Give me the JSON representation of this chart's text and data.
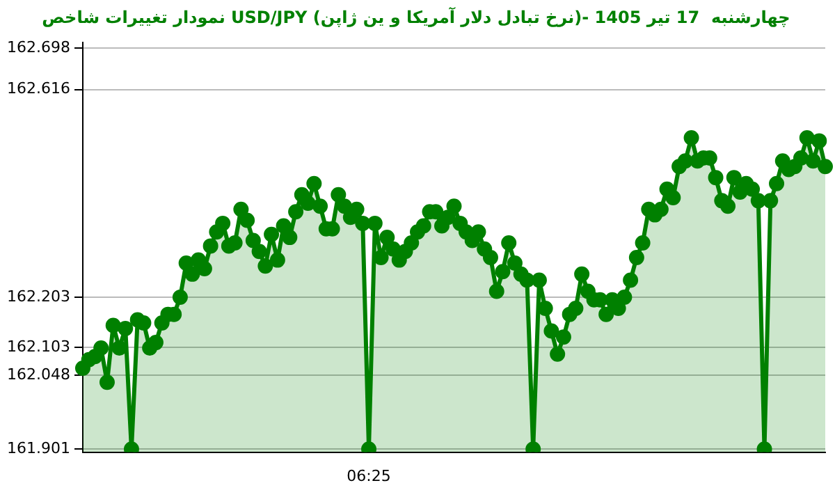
{
  "chart_data": {
    "type": "area",
    "title": "نمودار تغییرات شاخص USD/JPY (نرخ تبادل دلار آمریکا و ین ژاپن)- چهارشنبه  17 تیر 1405",
    "categories": [
      null,
      null,
      null,
      null,
      null,
      null,
      null,
      null,
      null,
      null,
      null,
      null,
      null,
      null,
      null,
      null,
      null,
      null,
      null,
      null,
      null,
      null,
      null,
      null,
      null,
      null,
      null,
      null,
      null,
      null,
      null,
      null,
      null,
      null,
      null,
      null,
      null,
      null,
      null,
      null,
      null,
      null,
      null,
      null,
      null,
      null,
      null,
      "06:25",
      null,
      null,
      null,
      null,
      null,
      null,
      null,
      null,
      null,
      null,
      null,
      null,
      null,
      null,
      null,
      null,
      null,
      null,
      null,
      null,
      null,
      null,
      null,
      null,
      null,
      null,
      null,
      null,
      null,
      null,
      null,
      null,
      null,
      null,
      null,
      null,
      null,
      null,
      null,
      null,
      null,
      null,
      null,
      null,
      null,
      null,
      null,
      null,
      null,
      null,
      null,
      null,
      null,
      null,
      null,
      null,
      null,
      null,
      null,
      null,
      null,
      null,
      null,
      null,
      null,
      null,
      null,
      null,
      null,
      null,
      null,
      null,
      null,
      null,
      null
    ],
    "series": [
      {
        "color": "#008000",
        "values": [
          162.062,
          162.079,
          162.085,
          162.102,
          162.034,
          162.147,
          162.102,
          162.141,
          161.901,
          162.158,
          162.152,
          162.102,
          162.113,
          162.152,
          162.169,
          162.169,
          162.203,
          162.271,
          162.249,
          162.277,
          162.26,
          162.305,
          162.333,
          162.35,
          162.305,
          162.311,
          162.378,
          162.356,
          162.316,
          162.294,
          162.265,
          162.328,
          162.277,
          162.345,
          162.322,
          162.373,
          162.407,
          162.39,
          162.429,
          162.384,
          162.339,
          162.339,
          162.407,
          162.384,
          162.362,
          162.378,
          162.35,
          161.901,
          162.35,
          162.282,
          162.322,
          162.299,
          162.277,
          162.294,
          162.311,
          162.333,
          162.345,
          162.373,
          162.373,
          162.345,
          162.362,
          162.384,
          162.35,
          162.333,
          162.316,
          162.333,
          162.299,
          162.282,
          162.215,
          162.254,
          162.311,
          162.271,
          162.249,
          162.237,
          161.901,
          162.237,
          162.181,
          162.136,
          162.09,
          162.124,
          162.169,
          162.181,
          162.249,
          162.215,
          162.198,
          162.198,
          162.169,
          162.198,
          162.181,
          162.203,
          162.237,
          162.282,
          162.311,
          162.378,
          162.367,
          162.378,
          162.418,
          162.401,
          162.463,
          162.474,
          162.52,
          162.474,
          162.48,
          162.48,
          162.441,
          162.395,
          162.384,
          162.441,
          162.412,
          162.429,
          162.418,
          162.395,
          161.901,
          162.395,
          162.429,
          162.474,
          162.457,
          162.463,
          162.48,
          162.52,
          162.474,
          162.514,
          162.463
        ]
      }
    ],
    "ylim": [
      161.895,
      162.71
    ],
    "yticks": [
      161.901,
      162.048,
      162.103,
      162.203,
      162.616,
      162.698
    ],
    "grid": "y",
    "marker": "circle",
    "legend": false
  }
}
